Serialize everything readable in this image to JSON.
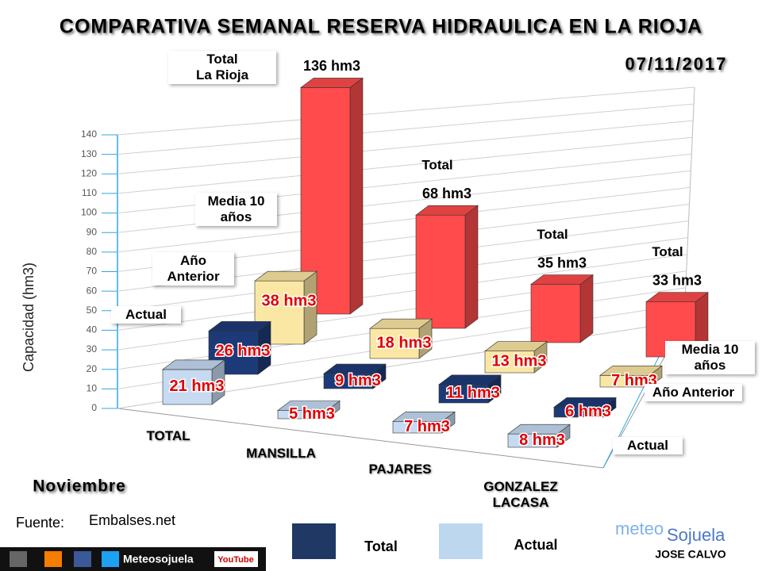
{
  "chart_data": {
    "type": "bar3d",
    "title": "COMPARATIVA SEMANAL RESERVA HIDRAULICA EN LA RIOJA",
    "date": "07/11/2017",
    "region": "La Rioja",
    "month": "Noviembre",
    "source_label": "Fuente:",
    "source": "Embalses.net",
    "y_label": "Capacidad (hm3)",
    "categories": [
      "TOTAL",
      "MANSILLA",
      "PAJARES",
      "GONZALEZ LACASA"
    ],
    "series": [
      {
        "name": "Total",
        "color": "#ff4b4b",
        "values": [
          136,
          68,
          35,
          33
        ],
        "value_labels": [
          "136 hm3",
          "68 hm3",
          "35 hm3",
          "33 hm3"
        ]
      },
      {
        "name": "Media 10 años",
        "color": "#fbe7a4",
        "values": [
          38,
          18,
          13,
          7
        ],
        "value_labels": [
          "38 hm3",
          "18 hm3",
          "13 hm3",
          "7 hm3"
        ]
      },
      {
        "name": "Año Anterior",
        "color": "#1d3a78",
        "values": [
          26,
          9,
          11,
          6
        ],
        "value_labels": [
          "26 hm3",
          "9 hm3",
          "11 hm3",
          "6 hm3"
        ]
      },
      {
        "name": "Actual",
        "color": "#c6daf2",
        "values": [
          21,
          5,
          7,
          8
        ],
        "value_labels": [
          "21 hm3",
          "5 hm3",
          "7 hm3",
          "8 hm3"
        ]
      }
    ],
    "ylim": [
      0,
      140
    ],
    "yticks": [
      0,
      10,
      20,
      30,
      40,
      50,
      60,
      70,
      80,
      90,
      100,
      110,
      120,
      130,
      140
    ],
    "grid": true,
    "legend": [
      {
        "name": "Total",
        "color": "#1f3864"
      },
      {
        "name": "Actual",
        "color": "#bdd7ee"
      }
    ],
    "brand": {
      "meteo": "meteo",
      "sojuela": "Sojuela",
      "author": "JOSE CALVO",
      "handle": "Meteosojuela",
      "youtube": "YouTube"
    }
  }
}
